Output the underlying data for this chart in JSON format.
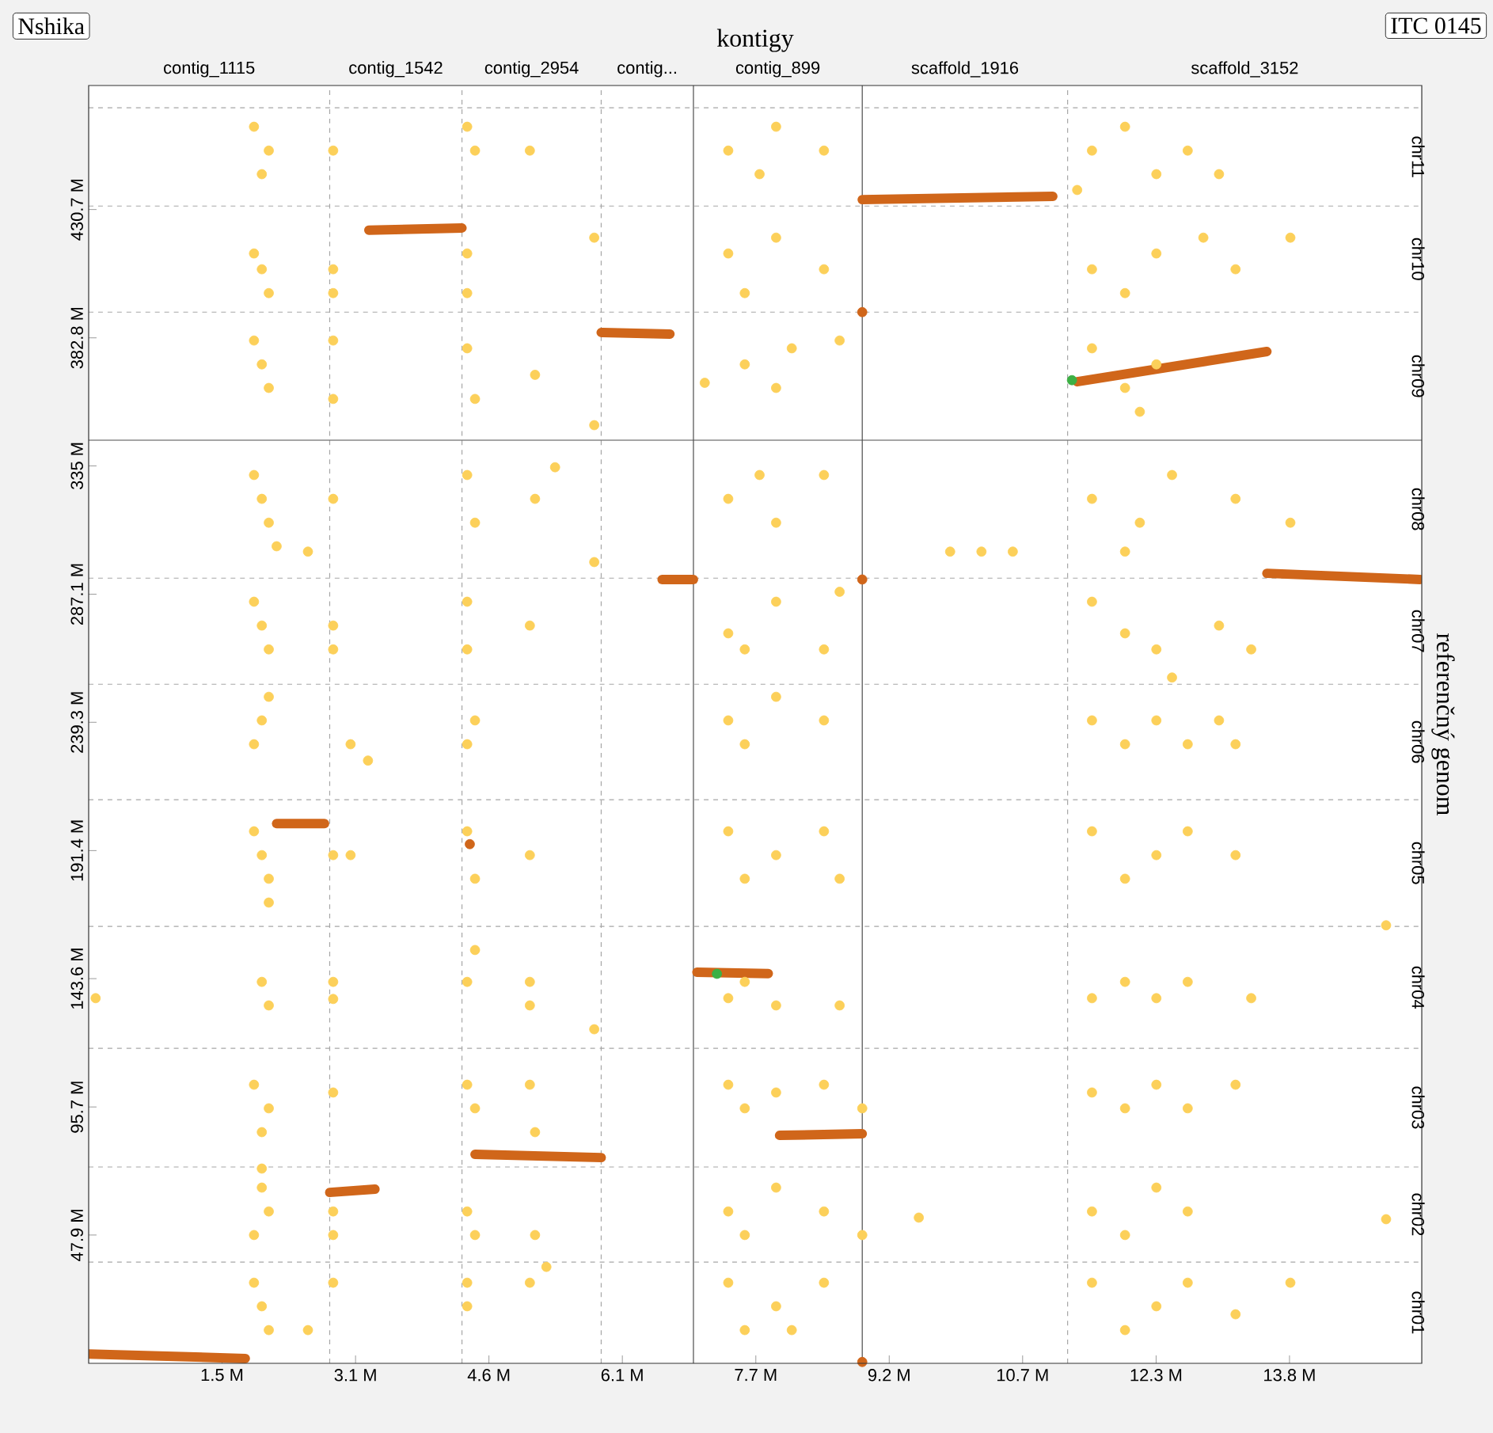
{
  "chart_data": {
    "type": "scatter",
    "title": "kontigy",
    "ylabel": "referenčný genom",
    "annotations": [
      "Nshika",
      "ITC 0145",
      "contig_1115",
      "contig_1542",
      "contig_2954",
      "contig...",
      "contig_899",
      "scaffold_1916",
      "scaffold_3152",
      "chr01",
      "chr02",
      "chr03",
      "chr04",
      "chr05",
      "chr06",
      "chr07",
      "chr08",
      "chr09",
      "chr10",
      "chr11"
    ],
    "xlim": [
      0,
      15.32
    ],
    "ylim": [
      0,
      477
    ],
    "xticks": [
      {
        "value": 1.533,
        "label": "1.5 M"
      },
      {
        "value": 3.067,
        "label": "3.1 M"
      },
      {
        "value": 4.6,
        "label": "4.6 M"
      },
      {
        "value": 6.133,
        "label": "6.1 M"
      },
      {
        "value": 7.667,
        "label": "7.7 M"
      },
      {
        "value": 9.2,
        "label": "9.2 M"
      },
      {
        "value": 10.733,
        "label": "10.7 M"
      },
      {
        "value": 12.267,
        "label": "12.3 M"
      },
      {
        "value": 13.8,
        "label": "13.8 M"
      }
    ],
    "yticks": [
      {
        "value": 47.9,
        "label": "47.9 M"
      },
      {
        "value": 95.7,
        "label": "95.7 M"
      },
      {
        "value": 143.6,
        "label": "143.6 M"
      },
      {
        "value": 191.4,
        "label": "191.4 M"
      },
      {
        "value": 239.3,
        "label": "239.3 M"
      },
      {
        "value": 287.1,
        "label": "287.1 M"
      },
      {
        "value": 335,
        "label": "335 M"
      },
      {
        "value": 382.8,
        "label": "382.8 M"
      },
      {
        "value": 430.7,
        "label": "430.7 M"
      }
    ],
    "ref_lines": [
      {
        "axis": "x",
        "value": 2.77,
        "line_style": "dashed"
      },
      {
        "axis": "x",
        "value": 4.29,
        "line_style": "dashed"
      },
      {
        "axis": "x",
        "value": 5.89,
        "line_style": "dashed"
      },
      {
        "axis": "x",
        "value": 6.95,
        "line_style": "solid"
      },
      {
        "axis": "x",
        "value": 8.89,
        "line_style": "solid"
      },
      {
        "axis": "x",
        "value": 11.25,
        "line_style": "dashed"
      },
      {
        "axis": "y",
        "value": 37.8,
        "line_style": "dashed"
      },
      {
        "axis": "y",
        "value": 73.3,
        "line_style": "dashed"
      },
      {
        "axis": "y",
        "value": 117.6,
        "line_style": "dashed"
      },
      {
        "axis": "y",
        "value": 163.1,
        "line_style": "dashed"
      },
      {
        "axis": "y",
        "value": 210.4,
        "line_style": "dashed"
      },
      {
        "axis": "y",
        "value": 253.5,
        "line_style": "dashed"
      },
      {
        "axis": "y",
        "value": 293.1,
        "line_style": "dashed"
      },
      {
        "axis": "y",
        "value": 344.6,
        "line_style": "solid"
      },
      {
        "axis": "y",
        "value": 392.4,
        "line_style": "dashed"
      },
      {
        "axis": "y",
        "value": 432.0,
        "line_style": "dashed"
      },
      {
        "axis": "y",
        "value": 468.7,
        "line_style": "dashed"
      }
    ],
    "series": [
      {
        "marker": "circle",
        "color": "#fcd05a",
        "x": [
          1.9,
          2.07,
          1.99,
          2.81,
          4.35,
          4.44,
          5.07,
          7.35,
          7.71,
          7.9,
          8.45,
          11.53,
          11.91,
          12.27,
          12.63,
          12.99,
          11.36,
          1.9,
          2.07,
          1.99,
          2.81,
          2.81,
          4.35,
          4.35,
          5.81,
          7.35,
          7.54,
          7.9,
          8.45,
          11.53,
          11.91,
          12.27,
          12.81,
          13.81,
          13.18,
          1.9,
          2.07,
          1.99,
          2.81,
          2.81,
          4.35,
          4.44,
          5.13,
          5.81,
          7.08,
          7.54,
          7.9,
          8.08,
          8.63,
          11.53,
          11.91,
          12.27,
          12.08,
          1.9,
          2.07,
          1.99,
          2.16,
          2.81,
          2.52,
          4.35,
          4.44,
          5.13,
          5.36,
          5.81,
          7.35,
          7.71,
          7.9,
          8.45,
          9.9,
          10.26,
          10.62,
          11.53,
          12.08,
          12.45,
          13.18,
          13.81,
          11.91,
          1.9,
          2.07,
          1.99,
          2.81,
          2.81,
          4.35,
          4.35,
          5.07,
          7.35,
          7.54,
          7.9,
          8.45,
          8.63,
          11.53,
          11.91,
          12.27,
          12.99,
          13.36,
          12.45,
          2.07,
          1.99,
          1.9,
          3.01,
          3.21,
          4.35,
          4.44,
          7.35,
          7.54,
          7.9,
          8.45,
          11.53,
          11.91,
          12.27,
          12.63,
          12.99,
          13.18,
          1.9,
          2.07,
          1.99,
          2.07,
          2.81,
          3.01,
          4.35,
          4.44,
          5.07,
          7.35,
          7.54,
          7.9,
          8.45,
          8.63,
          11.53,
          11.91,
          12.27,
          12.63,
          13.18,
          14.91,
          0.08,
          1.99,
          2.07,
          2.81,
          2.81,
          4.35,
          4.44,
          5.07,
          5.07,
          5.81,
          7.35,
          7.54,
          7.9,
          8.63,
          11.53,
          11.91,
          12.27,
          12.63,
          13.36,
          1.9,
          2.07,
          1.99,
          1.99,
          2.81,
          4.35,
          4.44,
          5.07,
          5.13,
          7.35,
          7.54,
          7.9,
          8.45,
          8.89,
          11.53,
          11.91,
          12.27,
          12.63,
          13.18,
          1.99,
          2.07,
          1.9,
          2.81,
          2.81,
          4.35,
          4.44,
          5.13,
          7.35,
          7.54,
          7.9,
          8.45,
          8.89,
          9.54,
          11.53,
          11.91,
          12.27,
          12.63,
          14.91,
          1.9,
          2.07,
          1.99,
          2.52,
          2.81,
          4.35,
          4.35,
          5.07,
          5.26,
          7.35,
          7.54,
          7.9,
          8.08,
          8.45,
          11.53,
          11.91,
          12.27,
          12.63,
          13.18,
          13.81
        ],
        "values": [
          461.6,
          452.7,
          443.9,
          452.7,
          461.6,
          452.7,
          452.7,
          452.7,
          443.9,
          461.6,
          452.7,
          452.7,
          461.6,
          443.9,
          452.7,
          443.9,
          438,
          414.3,
          399.5,
          408.4,
          408.4,
          399.5,
          414.3,
          399.5,
          420.2,
          414.3,
          399.5,
          420.2,
          408.4,
          408.4,
          399.5,
          414.3,
          420.2,
          420.2,
          408.4,
          381.8,
          364.1,
          372.9,
          381.8,
          360,
          378.9,
          360,
          369,
          350.2,
          366,
          372.9,
          364.1,
          378.9,
          381.8,
          378.9,
          364.1,
          372.9,
          355.2,
          331.6,
          313.8,
          322.7,
          305,
          322.7,
          303,
          331.6,
          313.8,
          322.7,
          334.5,
          299.1,
          322.7,
          331.6,
          313.8,
          331.6,
          303,
          303,
          303,
          322.7,
          313.8,
          331.6,
          322.7,
          313.8,
          303,
          284.3,
          266.5,
          275.4,
          275.4,
          266.5,
          284.3,
          266.5,
          275.4,
          272.5,
          266.5,
          284.3,
          266.5,
          288,
          284.3,
          272.5,
          266.5,
          275.4,
          266.5,
          256,
          248.8,
          240,
          231.1,
          231.1,
          225,
          231.1,
          240,
          240,
          231.1,
          248.8,
          240,
          240,
          231.1,
          240,
          231.1,
          240,
          231.1,
          198.6,
          180.9,
          189.7,
          172,
          189.7,
          189.7,
          198.6,
          180.9,
          189.7,
          198.6,
          180.9,
          189.7,
          198.6,
          180.9,
          198.6,
          180.9,
          189.7,
          198.6,
          189.7,
          163.5,
          136.3,
          142.4,
          133.6,
          142.4,
          136,
          142.4,
          154.3,
          133.6,
          142.4,
          124.7,
          136.3,
          142.4,
          133.6,
          133.6,
          136.3,
          142.4,
          136.3,
          142.4,
          136.3,
          104,
          95.2,
          86.3,
          72.7,
          101.1,
          104,
          95.2,
          104,
          86.3,
          104,
          95.2,
          101.1,
          104,
          95.2,
          101.1,
          95.2,
          104,
          95.2,
          104,
          65.6,
          56.7,
          47.9,
          56.7,
          47.9,
          56.7,
          47.9,
          47.9,
          56.7,
          47.9,
          65.6,
          56.7,
          47.9,
          54.4,
          56.7,
          47.9,
          65.6,
          56.7,
          53.8,
          30.1,
          12.4,
          21.3,
          12.4,
          30.1,
          30.1,
          21.3,
          30.1,
          36,
          30.1,
          12.4,
          21.3,
          12.4,
          30.1,
          30.1,
          12.4,
          21.3,
          30.1,
          18.3,
          30.1
        ]
      },
      {
        "type": "line",
        "marker": "none",
        "color": "#d0661a",
        "x": [
          0,
          1.8
        ],
        "values": [
          3.5,
          1.8
        ]
      },
      {
        "type": "line",
        "marker": "none",
        "color": "#d0661a",
        "x": [
          2.77,
          3.29
        ],
        "values": [
          63.8,
          65
        ]
      },
      {
        "type": "line",
        "marker": "none",
        "color": "#d0661a",
        "x": [
          4.44,
          5.89
        ],
        "values": [
          78,
          76.8
        ]
      },
      {
        "type": "line",
        "marker": "none",
        "color": "#d0661a",
        "x": [
          7.94,
          8.89
        ],
        "values": [
          85.1,
          85.7
        ]
      },
      {
        "type": "line",
        "marker": "none",
        "color": "#d0661a",
        "x": [
          2.16,
          2.71
        ],
        "values": [
          201.5,
          201.5
        ]
      },
      {
        "type": "line",
        "marker": "none",
        "color": "#d0661a",
        "x": [
          3.22,
          4.29
        ],
        "values": [
          423,
          423.8
        ]
      },
      {
        "type": "line",
        "marker": "none",
        "color": "#d0661a",
        "x": [
          5.89,
          6.68
        ],
        "values": [
          384.8,
          384.2
        ]
      },
      {
        "type": "line",
        "marker": "none",
        "color": "#d0661a",
        "x": [
          8.89,
          11.08
        ],
        "values": [
          434.4,
          435.6
        ]
      },
      {
        "type": "line",
        "marker": "none",
        "color": "#d0661a",
        "x": [
          13.54,
          15.3
        ],
        "values": [
          294.9,
          292.6
        ]
      },
      {
        "type": "line",
        "marker": "none",
        "color": "#d0661a",
        "x": [
          6.59,
          6.95
        ],
        "values": [
          292.6,
          292.6
        ]
      },
      {
        "type": "line",
        "marker": "none",
        "color": "#d0661a",
        "x": [
          11.36,
          13.54
        ],
        "values": [
          366.4,
          377.7
        ]
      },
      {
        "type": "line",
        "marker": "none",
        "color": "#d0661a",
        "x": [
          6.99,
          7.81
        ],
        "values": [
          146,
          145.5
        ]
      },
      {
        "marker": "circle",
        "color": "#d0661a",
        "x": [
          8.89,
          8.89,
          8.89,
          4.38
        ],
        "values": [
          392.4,
          292.6,
          0.5,
          193.8
        ]
      },
      {
        "marker": "circle",
        "color": "#3cb044",
        "x": [
          11.3,
          7.22
        ],
        "values": [
          367,
          145.4
        ]
      }
    ]
  }
}
